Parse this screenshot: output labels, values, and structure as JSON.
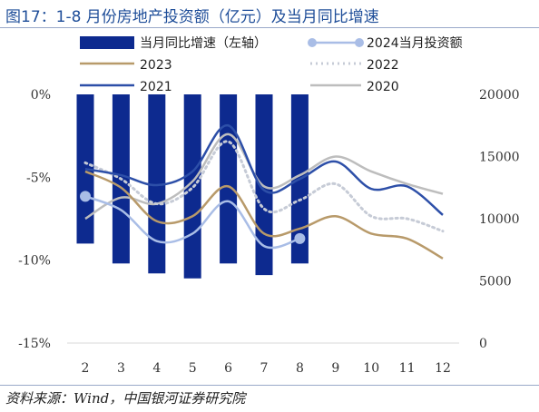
{
  "title": "图17：1-8 月份房地产投资额（亿元）及当月同比增速",
  "source": "资料来源：Wind，中国银河证券研究院",
  "chart_data": {
    "type": "bar+line",
    "categories": [
      "2",
      "3",
      "4",
      "5",
      "6",
      "7",
      "8",
      "9",
      "10",
      "11",
      "12"
    ],
    "left_axis": {
      "ylim": [
        -15,
        0
      ],
      "ticks": [
        0,
        -5,
        -10,
        -15
      ],
      "tick_labels": [
        "0%",
        "-5%",
        "-10%",
        "-15%"
      ]
    },
    "right_axis": {
      "ylim": [
        0,
        20000
      ],
      "ticks": [
        0,
        5000,
        10000,
        15000,
        20000
      ],
      "tick_labels": [
        "0",
        "5000",
        "10000",
        "15000",
        "20000"
      ]
    },
    "bars": {
      "name": "当月同比增速（左轴）",
      "axis": "left",
      "color": "#0d2a8f",
      "values": [
        -9.0,
        -10.2,
        -10.8,
        -11.1,
        -10.2,
        -10.9,
        -10.2,
        null,
        null,
        null,
        null
      ]
    },
    "series": [
      {
        "name": "2024当月投资额",
        "axis": "right",
        "color": "#a9bde6",
        "style": "solid-marker",
        "values": [
          11800,
          null,
          null,
          null,
          null,
          null,
          8400,
          null,
          null,
          null,
          null
        ]
      },
      {
        "name": "2023",
        "axis": "right",
        "color": "#b89a6a",
        "style": "solid",
        "values": [
          13800,
          12500,
          9800,
          10200,
          12600,
          8800,
          9200,
          10200,
          8800,
          8400,
          6800
        ]
      },
      {
        "name": "2022",
        "axis": "right",
        "color": "#c6cbd6",
        "style": "dotted",
        "values": [
          14500,
          13200,
          11200,
          12500,
          16200,
          10800,
          11500,
          12800,
          10200,
          10000,
          9000
        ]
      },
      {
        "name": "2021",
        "axis": "right",
        "color": "#2d4fa8",
        "style": "solid",
        "values": [
          14000,
          13500,
          12700,
          13800,
          17500,
          12300,
          13200,
          14600,
          12400,
          12600,
          10300
        ]
      },
      {
        "name": "2020",
        "axis": "right",
        "color": "#bdbdbd",
        "style": "solid",
        "values": [
          10000,
          11700,
          11200,
          13000,
          16800,
          12600,
          13500,
          15000,
          13800,
          12800,
          12000
        ]
      }
    ]
  }
}
